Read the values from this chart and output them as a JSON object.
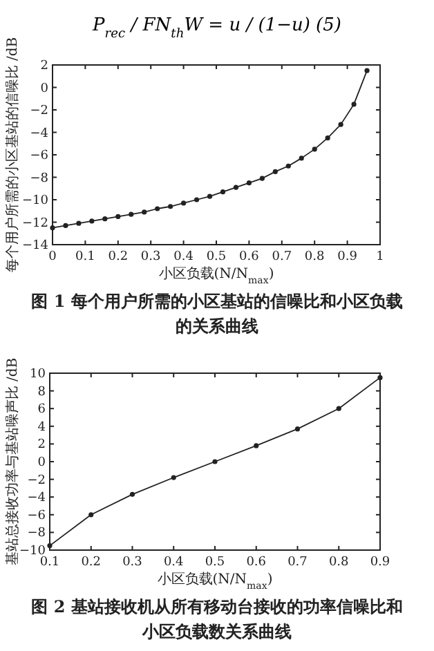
{
  "chart_data": [
    {
      "type": "line",
      "title": "图 1  每个用户所需的小区基站的信噪比和小区负载的关系曲线",
      "xlabel": "小区负载(N/N$_{max}$)",
      "ylabel": "每个用户所需的小区基站的信噪比 /dB",
      "annotations": [
        "P$_{rec}$ / FN$_{th}$W = u / (1−u)    (5)"
      ],
      "x": [
        0,
        0.04,
        0.08,
        0.12,
        0.16,
        0.2,
        0.24,
        0.28,
        0.32,
        0.36,
        0.4,
        0.44,
        0.48,
        0.52,
        0.56,
        0.6,
        0.64,
        0.68,
        0.72,
        0.76,
        0.8,
        0.84,
        0.88,
        0.92,
        0.96
      ],
      "series": [
        {
          "color": "#222222",
          "values": [
            -12.5,
            -12.3,
            -12.1,
            -11.9,
            -11.7,
            -11.5,
            -11.3,
            -11.1,
            -10.8,
            -10.6,
            -10.3,
            -10.0,
            -9.7,
            -9.3,
            -8.9,
            -8.5,
            -8.1,
            -7.5,
            -7.0,
            -6.3,
            -5.5,
            -4.5,
            -3.3,
            -1.5,
            1.5
          ]
        }
      ],
      "xlim": [
        0,
        1
      ],
      "xticks": [
        0,
        0.1,
        0.2,
        0.3,
        0.4,
        0.5,
        0.6,
        0.7,
        0.8,
        0.9,
        1
      ],
      "ylim": [
        -14,
        2
      ],
      "yticks": [
        -14,
        -12,
        -10,
        -8,
        -6,
        -4,
        -2,
        0,
        2
      ],
      "marker": "circle",
      "line_style": "solid",
      "grid": false
    },
    {
      "type": "line",
      "title": "图 2  基站接收机从所有移动台接收的功率信噪比和小区负载数关系曲线",
      "xlabel": "小区负载(N/N$_{max}$)",
      "ylabel": "基站总接收功率与基站噪声比 /dB",
      "x": [
        0.1,
        0.2,
        0.3,
        0.4,
        0.5,
        0.6,
        0.7,
        0.8,
        0.9
      ],
      "series": [
        {
          "color": "#222222",
          "values": [
            -9.5,
            -6.0,
            -3.7,
            -1.8,
            0.0,
            1.8,
            3.7,
            6.0,
            9.5
          ]
        }
      ],
      "xlim": [
        0.1,
        0.9
      ],
      "xticks": [
        0.1,
        0.2,
        0.3,
        0.4,
        0.5,
        0.6,
        0.7,
        0.8,
        0.9
      ],
      "ylim": [
        -10,
        10
      ],
      "yticks": [
        -10,
        -8,
        -6,
        -4,
        -2,
        0,
        2,
        4,
        6,
        8,
        10
      ],
      "marker": "circle",
      "line_style": "solid",
      "grid": false
    }
  ]
}
